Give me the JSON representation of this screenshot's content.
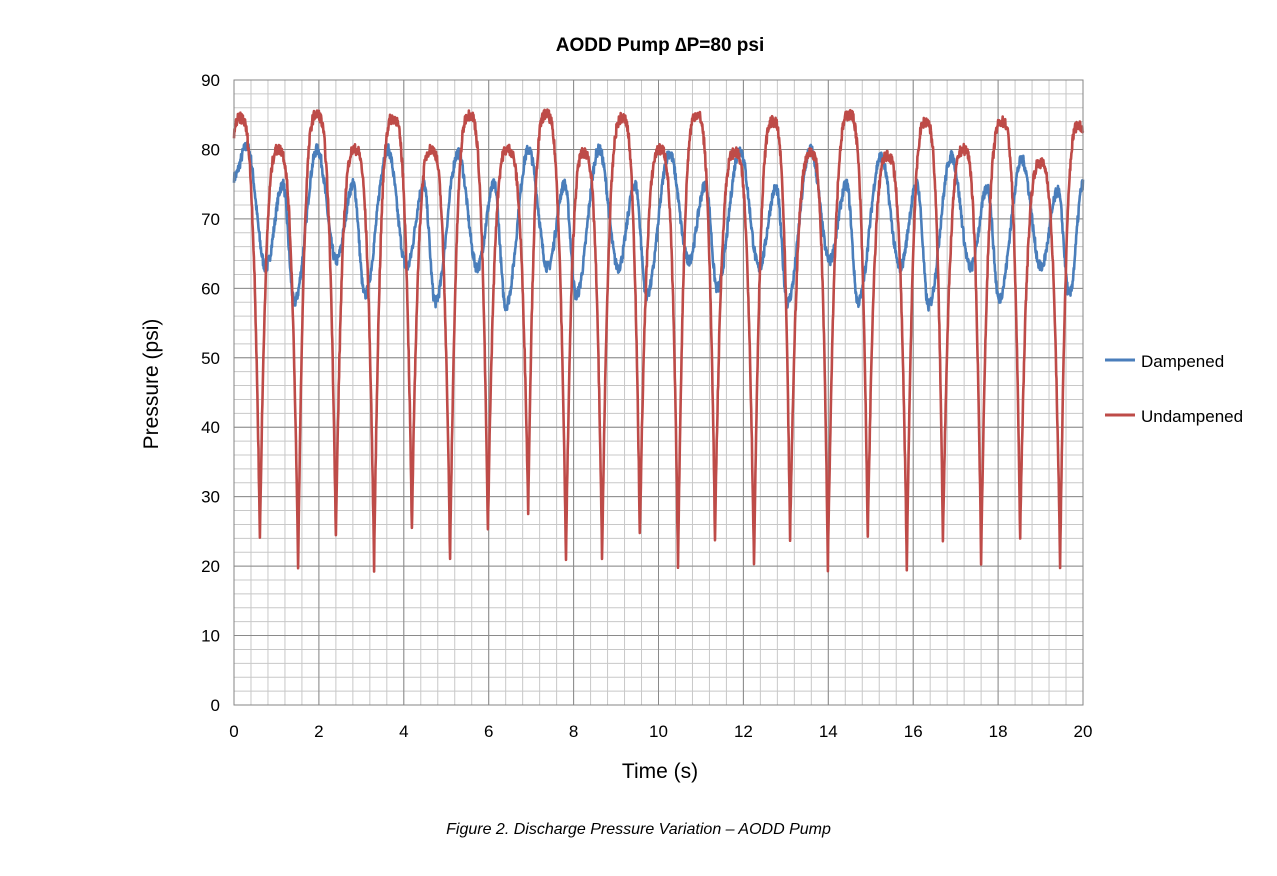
{
  "chart_data": {
    "type": "line",
    "title": "AODD Pump ∆P=80 psi",
    "xlabel": "Time (s)",
    "ylabel": "Pressure (psi)",
    "xlim": [
      0,
      20
    ],
    "ylim": [
      0,
      90
    ],
    "xticks": [
      0,
      2,
      4,
      6,
      8,
      10,
      12,
      14,
      16,
      18,
      20
    ],
    "yticks": [
      0,
      10,
      20,
      30,
      40,
      50,
      60,
      70,
      80,
      90
    ],
    "x_minor_step": 0.4,
    "y_minor_step": 2,
    "grid": true,
    "legend_position": "right",
    "series": [
      {
        "name": "Dampened",
        "color": "#4a7ebb",
        "shape": "cosine",
        "points": [
          [
            0,
            76
          ],
          [
            0.3,
            80.5
          ],
          [
            0.75,
            63
          ],
          [
            1.15,
            75
          ],
          [
            1.42,
            58
          ],
          [
            1.96,
            80
          ],
          [
            2.41,
            64
          ],
          [
            2.81,
            75
          ],
          [
            3.08,
            59
          ],
          [
            3.62,
            80
          ],
          [
            4.07,
            63
          ],
          [
            4.47,
            75
          ],
          [
            4.74,
            58
          ],
          [
            5.28,
            79.5
          ],
          [
            5.73,
            63
          ],
          [
            6.13,
            75
          ],
          [
            6.4,
            57.5
          ],
          [
            6.94,
            80
          ],
          [
            7.39,
            63
          ],
          [
            7.79,
            75
          ],
          [
            8.06,
            59
          ],
          [
            8.6,
            80
          ],
          [
            9.05,
            63
          ],
          [
            9.45,
            75
          ],
          [
            9.72,
            59
          ],
          [
            10.26,
            79.5
          ],
          [
            10.71,
            64
          ],
          [
            11.11,
            75
          ],
          [
            11.38,
            60
          ],
          [
            11.92,
            80
          ],
          [
            12.37,
            63
          ],
          [
            12.77,
            74.5
          ],
          [
            13.04,
            58
          ],
          [
            13.58,
            80
          ],
          [
            14.03,
            64
          ],
          [
            14.43,
            75
          ],
          [
            14.7,
            58
          ],
          [
            15.24,
            79
          ],
          [
            15.69,
            63
          ],
          [
            16.09,
            75
          ],
          [
            16.36,
            57.5
          ],
          [
            16.9,
            79
          ],
          [
            17.35,
            63
          ],
          [
            17.75,
            74.5
          ],
          [
            18.02,
            58.5
          ],
          [
            18.56,
            78.5
          ],
          [
            19.01,
            63
          ],
          [
            19.41,
            74
          ],
          [
            19.68,
            59
          ],
          [
            20,
            75
          ]
        ]
      },
      {
        "name": "Undampened",
        "color": "#be4b48",
        "shape": "spike",
        "points": [
          [
            0,
            82
          ],
          [
            0.15,
            84.5
          ],
          [
            0.61,
            24
          ],
          [
            1.05,
            80
          ],
          [
            1.51,
            20
          ],
          [
            1.95,
            85
          ],
          [
            2.4,
            24
          ],
          [
            2.85,
            80
          ],
          [
            3.3,
            20
          ],
          [
            3.75,
            84.5
          ],
          [
            4.19,
            25
          ],
          [
            4.65,
            80
          ],
          [
            5.09,
            21
          ],
          [
            5.55,
            85
          ],
          [
            5.98,
            25
          ],
          [
            6.45,
            80
          ],
          [
            6.93,
            28
          ],
          [
            7.35,
            85
          ],
          [
            7.82,
            21
          ],
          [
            8.25,
            79.5
          ],
          [
            8.67,
            21
          ],
          [
            9.15,
            84.5
          ],
          [
            9.56,
            24
          ],
          [
            10.05,
            80
          ],
          [
            10.46,
            20
          ],
          [
            10.9,
            85
          ],
          [
            11.33,
            24
          ],
          [
            11.8,
            79.5
          ],
          [
            12.25,
            20
          ],
          [
            12.7,
            84
          ],
          [
            13.1,
            24
          ],
          [
            13.6,
            79.5
          ],
          [
            13.99,
            20
          ],
          [
            14.5,
            85
          ],
          [
            14.93,
            24
          ],
          [
            15.4,
            79
          ],
          [
            15.85,
            20
          ],
          [
            16.3,
            84
          ],
          [
            16.7,
            24
          ],
          [
            17.2,
            80
          ],
          [
            17.6,
            21
          ],
          [
            18.1,
            84
          ],
          [
            18.52,
            24
          ],
          [
            19.0,
            78
          ],
          [
            19.46,
            20
          ],
          [
            19.9,
            83.5
          ],
          [
            20,
            82.5
          ]
        ]
      }
    ]
  },
  "caption": "Figure 2. Discharge Pressure Variation – AODD Pump"
}
